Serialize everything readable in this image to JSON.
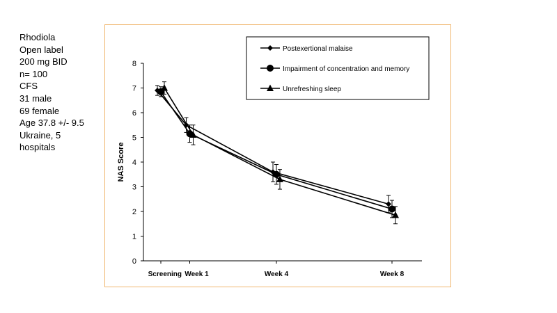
{
  "notes": [
    "Rhodiola",
    "Open label",
    "200 mg BID",
    "n= 100",
    "CFS",
    "31 male",
    "69 female",
    "Age 37.8 +/- 9.5",
    "Ukraine, 5",
    "hospitals"
  ],
  "chart_data": {
    "type": "line",
    "title": "",
    "xlabel": "",
    "ylabel": "NAS Score",
    "ylim": [
      0,
      8
    ],
    "yticks": [
      "0",
      "1",
      "2",
      "3",
      "4",
      "5",
      "6",
      "7",
      "8"
    ],
    "categories": [
      "Screening",
      "Week 1",
      "Week 4",
      "Week 8"
    ],
    "category_weeks": [
      0,
      1,
      4,
      8
    ],
    "series": [
      {
        "name": "Postexertional malaise",
        "marker": "diamond",
        "offset": -0.12,
        "values": [
          6.9,
          5.5,
          3.6,
          2.3
        ],
        "errors": [
          0.2,
          0.3,
          0.4,
          0.35
        ]
      },
      {
        "name": "Impairment of concentration and memory",
        "marker": "circle",
        "offset": 0,
        "values": [
          6.85,
          5.15,
          3.5,
          2.1
        ],
        "errors": [
          0.2,
          0.35,
          0.4,
          0.35
        ]
      },
      {
        "name": "Unrefreshing sleep",
        "marker": "triangle",
        "offset": 0.12,
        "values": [
          7.0,
          5.1,
          3.3,
          1.85
        ],
        "errors": [
          0.25,
          0.4,
          0.4,
          0.35
        ]
      }
    ],
    "legend_position": "top-right"
  }
}
